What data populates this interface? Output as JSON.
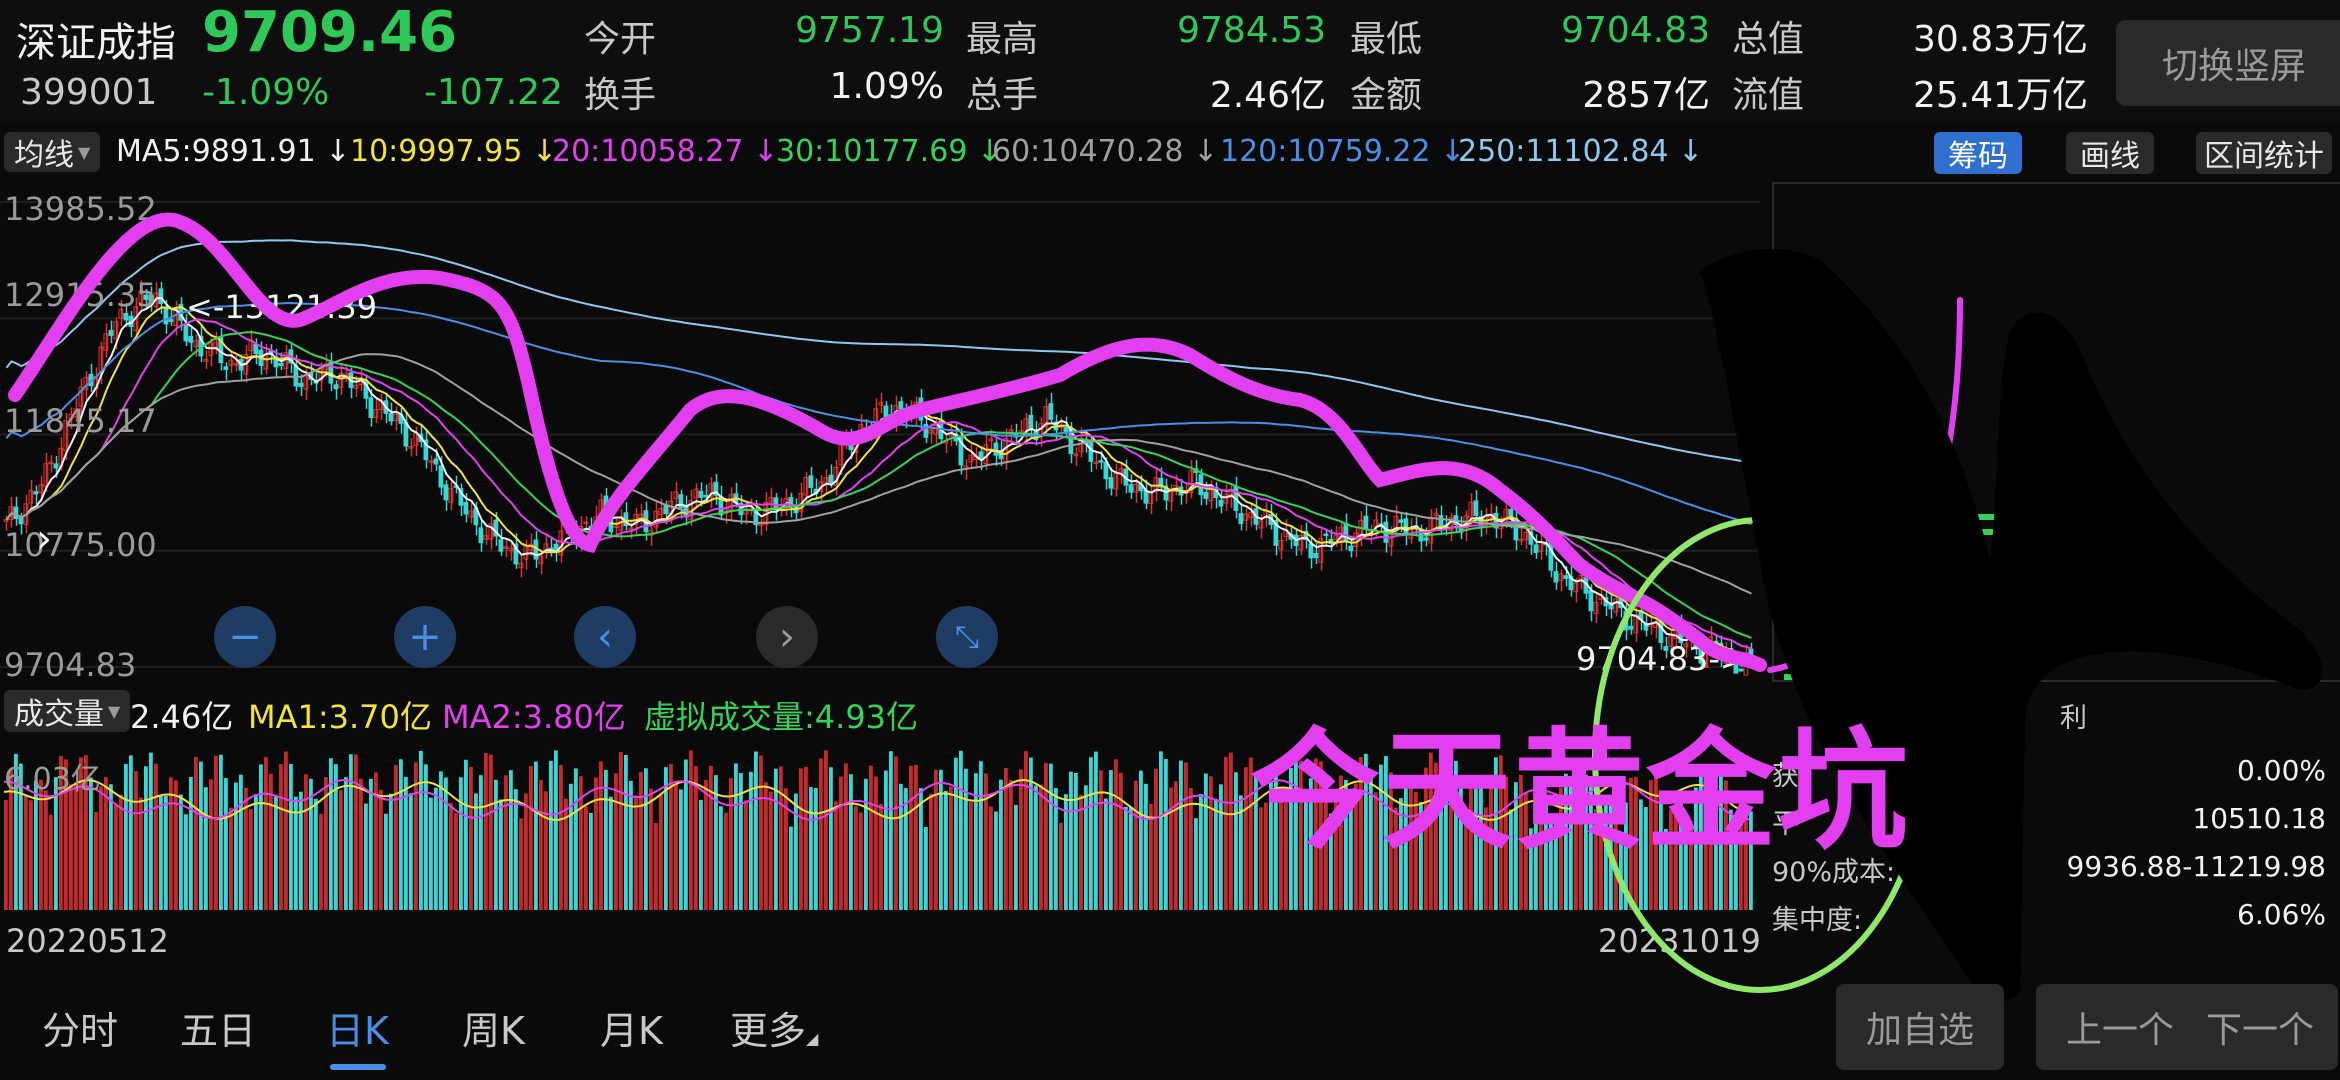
{
  "header": {
    "index_name": "深证成指",
    "index_code": "399001",
    "price": "9709.46",
    "change_pct": "-1.09%",
    "change_abs": "-107.22",
    "stats": [
      {
        "label": "今开",
        "value": "9757.19",
        "color": "green"
      },
      {
        "label": "最高",
        "value": "9784.53",
        "color": "green"
      },
      {
        "label": "最低",
        "value": "9704.83",
        "color": "green"
      },
      {
        "label": "总值",
        "value": "30.83万亿",
        "color": "white"
      },
      {
        "label": "换手",
        "value": "1.09%",
        "color": "white"
      },
      {
        "label": "总手",
        "value": "2.46亿",
        "color": "white"
      },
      {
        "label": "金额",
        "value": "2857亿",
        "color": "white"
      },
      {
        "label": "流值",
        "value": "25.41万亿",
        "color": "white"
      }
    ],
    "switch_button": "切换竖屏"
  },
  "ma_bar": {
    "selector": "均线",
    "items": [
      {
        "text": "MA5:9891.91 ↓",
        "color": "#f2f2f2"
      },
      {
        "text": "10:9997.95 ↓",
        "color": "#f2e33a"
      },
      {
        "text": "20:10058.27 ↓",
        "color": "#e33ef0"
      },
      {
        "text": "30:10177.69 ↓",
        "color": "#34d35a"
      },
      {
        "text": "60:10470.28 ↓",
        "color": "#a0a0a0"
      },
      {
        "text": "120:10759.22 ↓",
        "color": "#4a8fe6"
      },
      {
        "text": "250:11102.84 ↓",
        "color": "#8ec8f0"
      }
    ],
    "buttons": {
      "chips": "筹码",
      "draw": "画线",
      "range_stats": "区间统计"
    }
  },
  "main_chart": {
    "y_labels": [
      "13985.52",
      "12915.35",
      "11845.17",
      "10775.00",
      "9704.83"
    ],
    "high_marker": "<-13121.39",
    "low_marker": "9704.83->"
  },
  "volume": {
    "selector": "成交量",
    "value": "2.46亿",
    "ma1": "MA1:3.70亿",
    "ma2": "MA2:3.80亿",
    "virtual": "虚拟成交量:4.93亿",
    "max_label": "6.03亿",
    "date_start": "20220512",
    "date_end": "20231019"
  },
  "chips_panel": {
    "profit_label": "利",
    "rows": [
      {
        "label": "获",
        "value": "0.00%"
      },
      {
        "label": "平",
        "value": "10510.18"
      },
      {
        "label": "90%成本:",
        "value": "9936.88-11219.98"
      },
      {
        "label": "集中度:",
        "value": "6.06%"
      }
    ]
  },
  "tabs": [
    "分时",
    "五日",
    "日K",
    "周K",
    "月K",
    "更多"
  ],
  "active_tab": "日K",
  "nav_buttons": {
    "add_watch": "加自选",
    "prev": "上一个",
    "next": "下一个"
  },
  "overlay_text": "今天黄金坑",
  "chart_data": {
    "type": "candlestick",
    "title": "",
    "x_range": [
      "20220512",
      "20231019"
    ],
    "ylim": [
      9704.83,
      13985.52
    ],
    "y_ticks": [
      13985.52,
      12915.35,
      11845.17,
      10775.0,
      9704.83
    ],
    "price_path": [
      11000,
      11400,
      12200,
      12900,
      13121.39,
      12700,
      12500,
      12600,
      12350,
      12400,
      12100,
      11800,
      11300,
      10900,
      10700,
      10900,
      11100,
      11000,
      11200,
      11300,
      11100,
      11200,
      11400,
      11900,
      12100,
      11900,
      11600,
      11800,
      12000,
      11700,
      11400,
      11300,
      11400,
      11200,
      11000,
      10800,
      10900,
      11000,
      10950,
      11050,
      11100,
      10900,
      10500,
      10300,
      10100,
      9950,
      9850,
      9704.83
    ],
    "volume_max": "6.03亿"
  }
}
